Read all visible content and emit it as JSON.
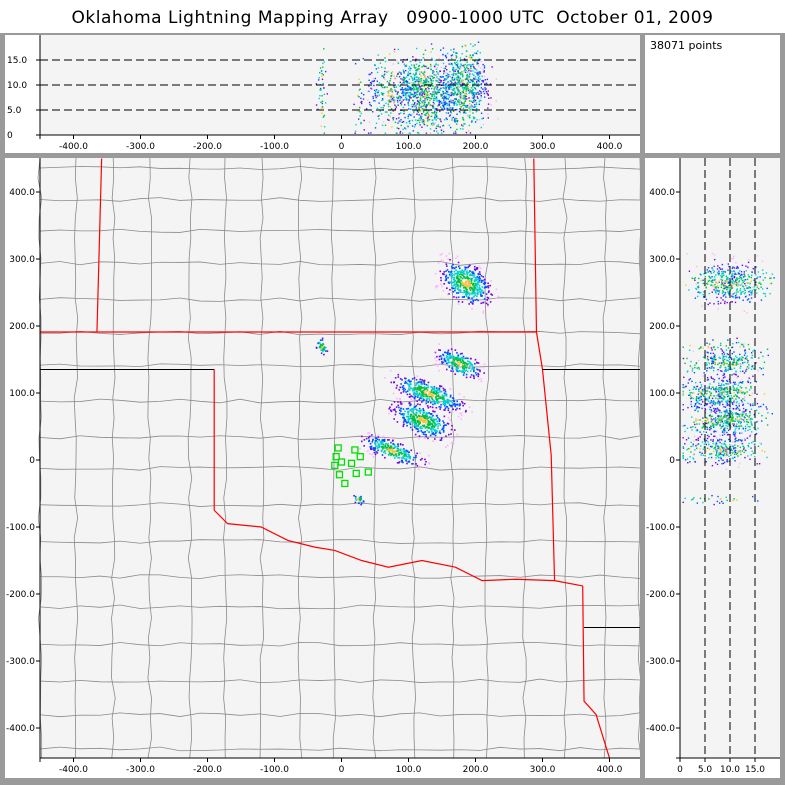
{
  "title": "Oklahoma Lightning Mapping Array   0900-1000 UTC  October 01, 2009",
  "info": {
    "point_count": "38071 points"
  },
  "axes": {
    "x_km": {
      "range": [
        -450,
        450
      ],
      "ticks": [
        "-400.0",
        "-300.0",
        "-200.0",
        "-100.0",
        "0",
        "100.0",
        "200.0",
        "300.0",
        "400.0"
      ]
    },
    "y_km": {
      "range": [
        -450,
        450
      ],
      "ticks": [
        "400.0",
        "300.0",
        "200.0",
        "100.0",
        "0",
        "-100.0",
        "-200.0",
        "-300.0",
        "-400.0"
      ]
    },
    "alt_km": {
      "range": [
        0,
        20
      ],
      "ticks": [
        "0",
        "5.0",
        "10.0",
        "15.0"
      ],
      "dashed_at": [
        5,
        10,
        15
      ]
    }
  },
  "colors": {
    "background": "#f4f4f4",
    "state_border": "#ff0000",
    "county": "#8a8a8a",
    "station": "#00e000",
    "density": [
      "#ffb0ff",
      "#7a00e0",
      "#0050ff",
      "#00d0d0",
      "#00c040",
      "#ffc040"
    ]
  },
  "stations_km": [
    [
      -5,
      18
    ],
    [
      20,
      15
    ],
    [
      -8,
      5
    ],
    [
      28,
      5
    ],
    [
      0,
      -3
    ],
    [
      15,
      -5
    ],
    [
      -10,
      -8
    ],
    [
      22,
      -20
    ],
    [
      40,
      -18
    ],
    [
      -3,
      -22
    ],
    [
      5,
      -35
    ]
  ],
  "lightning_clusters": [
    {
      "center_km": [
        185,
        265
      ],
      "spread_km": [
        25,
        20
      ],
      "alt_km": 10
    },
    {
      "center_km": [
        120,
        60
      ],
      "spread_km": [
        30,
        15
      ],
      "alt_km": 9
    },
    {
      "center_km": [
        175,
        145
      ],
      "spread_km": [
        22,
        12
      ],
      "alt_km": 9
    },
    {
      "center_km": [
        130,
        100
      ],
      "spread_km": [
        35,
        12
      ],
      "alt_km": 8
    },
    {
      "center_km": [
        75,
        15
      ],
      "spread_km": [
        30,
        10
      ],
      "alt_km": 8
    },
    {
      "center_km": [
        25,
        -58
      ],
      "spread_km": [
        6,
        5
      ],
      "alt_km": 7
    },
    {
      "center_km": [
        -30,
        170
      ],
      "spread_km": [
        6,
        8
      ],
      "alt_km": 8
    }
  ]
}
